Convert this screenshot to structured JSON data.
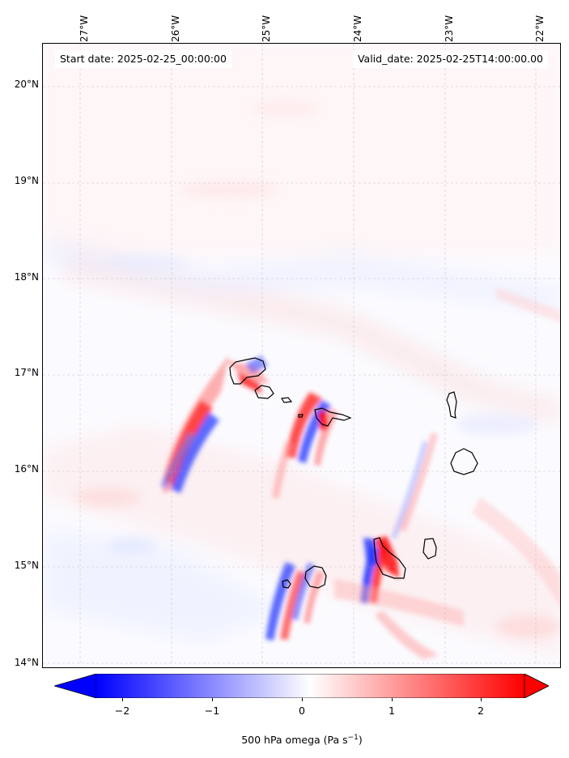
{
  "header": {
    "start_date": "Start date: 2025-02-25_00:00:00",
    "valid_date": "Valid_date: 2025-02-25T14:00:00.00"
  },
  "longitude_labels": [
    "27°W",
    "26°W",
    "25°W",
    "24°W",
    "23°W",
    "22°W"
  ],
  "latitude_labels": [
    "20°N",
    "19°N",
    "18°N",
    "17°N",
    "16°N",
    "15°N",
    "14°N"
  ],
  "colorbar": {
    "ticks": [
      "−2",
      "−1",
      "0",
      "1",
      "2"
    ],
    "label": "500 hPa omega (Pa s",
    "label_exponent": "−1",
    "label_suffix": ")",
    "range": [
      -2.6,
      2.6
    ],
    "colormap": "bwr",
    "extend": "both"
  },
  "map": {
    "lon_range": [
      -27.35,
      -21.92
    ],
    "lat_range": [
      13.95,
      20.45
    ],
    "gridlines": true,
    "islands": [
      "Santo Antão",
      "São Vicente",
      "Santa Luzia",
      "São Nicolau",
      "Sal",
      "Boa Vista",
      "Maio",
      "Santiago",
      "Fogo",
      "Brava"
    ]
  }
}
